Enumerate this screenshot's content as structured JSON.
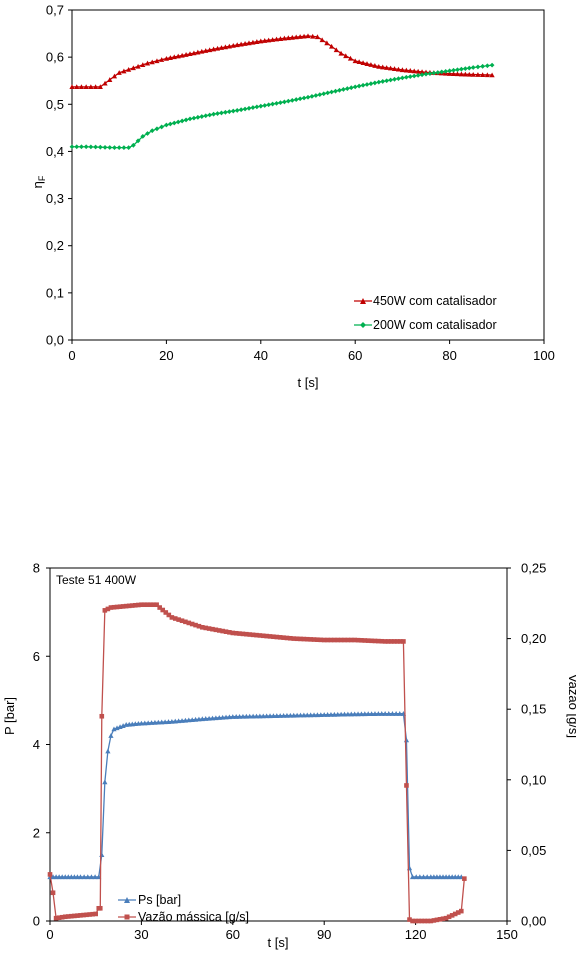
{
  "chart_data": [
    {
      "type": "line",
      "xlabel": "t [s]",
      "ylabel": "η",
      "ylabel_sub": "F",
      "xlim": [
        0,
        100
      ],
      "ylim": [
        0,
        0.7
      ],
      "xticks": [
        "0",
        "20",
        "40",
        "60",
        "80",
        "100"
      ],
      "yticks": [
        "0,0",
        "0,1",
        "0,2",
        "0,3",
        "0,4",
        "0,5",
        "0,6",
        "0,7"
      ],
      "legend_position": "bottom-right",
      "grid": false,
      "series": [
        {
          "name": "450W com catalisador",
          "color": "#c00000",
          "marker": "triangle",
          "x": [
            0,
            3,
            6,
            8,
            10,
            13,
            16,
            20,
            25,
            30,
            35,
            40,
            45,
            50,
            52,
            54,
            57,
            60,
            65,
            70,
            75,
            80,
            85,
            89
          ],
          "y": [
            0.537,
            0.537,
            0.537,
            0.552,
            0.567,
            0.577,
            0.587,
            0.597,
            0.607,
            0.617,
            0.626,
            0.634,
            0.64,
            0.645,
            0.643,
            0.63,
            0.608,
            0.592,
            0.58,
            0.573,
            0.568,
            0.565,
            0.563,
            0.562
          ]
        },
        {
          "name": "200W com catalisador",
          "color": "#00b050",
          "marker": "diamond",
          "x": [
            0,
            3,
            6,
            9,
            12,
            13,
            15,
            17,
            20,
            25,
            30,
            35,
            40,
            45,
            50,
            55,
            60,
            65,
            70,
            75,
            80,
            85,
            89
          ],
          "y": [
            0.41,
            0.41,
            0.409,
            0.408,
            0.408,
            0.413,
            0.432,
            0.444,
            0.456,
            0.469,
            0.479,
            0.487,
            0.496,
            0.505,
            0.515,
            0.526,
            0.537,
            0.547,
            0.556,
            0.564,
            0.571,
            0.578,
            0.583
          ]
        }
      ]
    },
    {
      "type": "line",
      "annotation": "Teste 51 400W",
      "xlabel": "t [s]",
      "ylabel": "P [bar]",
      "y2label": "Vazão [g/s]",
      "xlim": [
        0,
        150
      ],
      "ylim": [
        0,
        8
      ],
      "y2lim": [
        0,
        0.25
      ],
      "xticks": [
        "0",
        "30",
        "60",
        "90",
        "120",
        "150"
      ],
      "yticks": [
        "0",
        "2",
        "4",
        "6",
        "8"
      ],
      "y2ticks": [
        "0,00",
        "0,05",
        "0,10",
        "0,15",
        "0,20",
        "0,25"
      ],
      "legend_position": "bottom-left",
      "grid": false,
      "series": [
        {
          "name": "Ps [bar]",
          "axis": "left",
          "color": "#4a7ebb",
          "marker": "triangle",
          "x": [
            0,
            2,
            5,
            10,
            16,
            17,
            18,
            19,
            20,
            21,
            23,
            25,
            30,
            40,
            50,
            60,
            80,
            100,
            110,
            116,
            117,
            118,
            119,
            125,
            130,
            135
          ],
          "y": [
            1.0,
            1.0,
            1.0,
            1.0,
            1.0,
            1.5,
            3.15,
            3.85,
            4.2,
            4.35,
            4.4,
            4.45,
            4.48,
            4.52,
            4.58,
            4.63,
            4.66,
            4.69,
            4.7,
            4.7,
            4.1,
            1.2,
            1.0,
            1.0,
            1.0,
            1.0
          ]
        },
        {
          "name": "Vazão mássica [g/s]",
          "axis": "right",
          "color": "#c0504d",
          "marker": "square",
          "x": [
            0,
            1,
            2,
            5,
            10,
            15,
            16,
            16.5,
            17,
            18,
            19,
            20,
            25,
            30,
            35,
            36,
            40,
            50,
            60,
            70,
            80,
            90,
            100,
            110,
            115,
            116,
            117,
            118,
            119,
            122,
            125,
            130,
            133,
            135,
            136
          ],
          "y": [
            0.033,
            0.02,
            0.002,
            0.003,
            0.004,
            0.005,
            0.009,
            0.009,
            0.145,
            0.22,
            0.221,
            0.222,
            0.223,
            0.224,
            0.224,
            0.222,
            0.215,
            0.208,
            0.204,
            0.202,
            0.2,
            0.199,
            0.199,
            0.198,
            0.198,
            0.198,
            0.096,
            0.001,
            0.0,
            0.0,
            0.0,
            0.002,
            0.005,
            0.007,
            0.03
          ]
        }
      ]
    }
  ]
}
